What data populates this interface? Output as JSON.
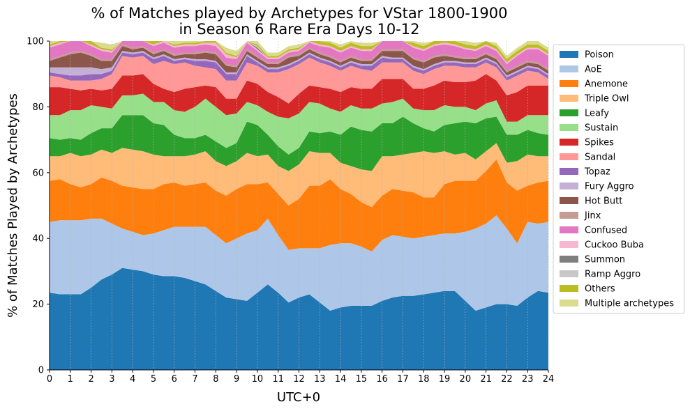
{
  "chart_data": {
    "type": "area",
    "title": "% of Matches played by Archetypes for VStar 1800-1900\nin Season 6 Rare Era Days 10-12",
    "xlabel": "UTC+0",
    "ylabel": "% of Matches Played by Archetypes",
    "xlim": [
      0,
      24
    ],
    "ylim": [
      0,
      100
    ],
    "x_ticks": [
      0,
      1,
      2,
      3,
      4,
      5,
      6,
      7,
      8,
      9,
      10,
      11,
      12,
      13,
      14,
      15,
      16,
      17,
      18,
      19,
      20,
      21,
      22,
      23,
      24
    ],
    "y_ticks": [
      0,
      20,
      40,
      60,
      80,
      100
    ],
    "grid": "vertical dashed",
    "legend_position": "right",
    "stacked": true,
    "x": [
      0,
      0.5,
      1,
      1.5,
      2,
      2.5,
      3,
      3.5,
      4,
      4.5,
      5,
      5.5,
      6,
      6.5,
      7,
      7.5,
      8,
      8.5,
      9,
      9.5,
      10,
      10.5,
      11,
      11.5,
      12,
      12.5,
      13,
      13.5,
      14,
      14.5,
      15,
      15.5,
      16,
      16.5,
      17,
      17.5,
      18,
      18.5,
      19,
      19.5,
      20,
      20.5,
      21,
      21.5,
      22,
      22.5,
      23,
      23.5,
      24
    ],
    "series": [
      {
        "name": "Poison",
        "color": "#1f77b4",
        "values": [
          23.5,
          23,
          23,
          23,
          25,
          27.5,
          29,
          31,
          30.5,
          30,
          29,
          28.5,
          28.5,
          28,
          27,
          26,
          24,
          22,
          21.5,
          21,
          23.5,
          26,
          23.5,
          20.5,
          22,
          23,
          20.5,
          18,
          19,
          19.5,
          19.5,
          19.5,
          21,
          22,
          22.5,
          22.5,
          23,
          23.5,
          24,
          24,
          21,
          18,
          19,
          20,
          20,
          19.5,
          22,
          24,
          23.5
        ]
      },
      {
        "name": "AoE",
        "color": "#aec7e8",
        "values": [
          21.5,
          22.5,
          22.5,
          22.5,
          21,
          18.5,
          15.5,
          12,
          11.5,
          11,
          12.5,
          14,
          15,
          15.5,
          16.5,
          17.5,
          17,
          16.5,
          18.5,
          20.5,
          19,
          20,
          17.5,
          16,
          15,
          14,
          16.5,
          20,
          19.5,
          19,
          18,
          16.5,
          18.5,
          19,
          18,
          17.5,
          17.5,
          17.5,
          17.5,
          17.5,
          21,
          25,
          25.5,
          27,
          23,
          19,
          23,
          20.5,
          21.5
        ]
      },
      {
        "name": "Anemone",
        "color": "#ff7f0e",
        "values": [
          12.5,
          12.5,
          11,
          10,
          10.5,
          12.5,
          13,
          13,
          13.5,
          14,
          13.5,
          14,
          13.5,
          12.5,
          13,
          13.5,
          13.5,
          14.5,
          15,
          15,
          14,
          11,
          12.5,
          13.5,
          15,
          19,
          19,
          20,
          16.5,
          15,
          13.5,
          13.5,
          13.5,
          14,
          14,
          14,
          12,
          11.5,
          15,
          16,
          15.5,
          14.5,
          16,
          17,
          14,
          16,
          11,
          12.5,
          12.5
        ]
      },
      {
        "name": "Triple Owl",
        "color": "#ffbb78",
        "values": [
          7.5,
          7,
          9.5,
          9.5,
          9,
          8.5,
          8.5,
          11.5,
          11.5,
          11.5,
          10.5,
          8.5,
          8,
          9,
          9,
          9.5,
          9,
          9,
          8.5,
          9.5,
          8.5,
          8.5,
          8.5,
          10.5,
          10.5,
          10.5,
          10,
          8,
          8,
          8.5,
          10,
          11,
          12,
          10,
          11,
          12,
          14,
          13.5,
          10,
          8,
          8.5,
          6.5,
          6,
          5,
          6,
          9,
          9.5,
          8,
          7.5
        ]
      },
      {
        "name": "Leafy",
        "color": "#2ca02c",
        "values": [
          5.5,
          5,
          4.5,
          5,
          6.5,
          6.5,
          7.5,
          10,
          10.5,
          11,
          9.5,
          9.5,
          6.5,
          5.5,
          5,
          5,
          6,
          5.5,
          5.5,
          9.5,
          9.5,
          6,
          6,
          5,
          5,
          6,
          6,
          6.5,
          8.5,
          12,
          12,
          12,
          10,
          10,
          11.5,
          9,
          7,
          6.5,
          8,
          9.5,
          9.5,
          11,
          10,
          8,
          8.5,
          8,
          7.5,
          7,
          6.5
        ]
      },
      {
        "name": "Sustain",
        "color": "#98df8a",
        "values": [
          7,
          7.5,
          8.5,
          9,
          8.5,
          6.5,
          6,
          6,
          6,
          6.5,
          6.5,
          7,
          7.5,
          8,
          9.5,
          11,
          10.5,
          10,
          9,
          6,
          6,
          7,
          9,
          11,
          10.5,
          9,
          9,
          7,
          7,
          6.5,
          6.5,
          7,
          6,
          6.5,
          5.5,
          4.5,
          5.5,
          6.5,
          6,
          5,
          4.5,
          4,
          4.5,
          5,
          4,
          4,
          4.5,
          5.5,
          6
        ]
      },
      {
        "name": "Spikes",
        "color": "#d62728",
        "values": [
          8.5,
          8.5,
          6.5,
          6,
          5,
          5,
          6,
          6,
          6,
          6,
          5.5,
          4,
          5.5,
          7,
          6,
          4,
          6,
          5,
          4.5,
          6.5,
          6.5,
          6,
          6,
          4.5,
          6,
          5,
          5,
          6,
          6,
          5.5,
          6,
          6,
          7.5,
          7,
          6,
          6,
          6.5,
          7.5,
          7.5,
          7.5,
          7.5,
          9,
          9,
          6,
          8,
          9,
          9,
          9,
          9
        ]
      },
      {
        "name": "Sandal",
        "color": "#ff9896",
        "values": [
          3.5,
          3,
          2.5,
          3,
          2.5,
          3.5,
          4.5,
          6,
          5.5,
          5.5,
          6,
          8.5,
          8.5,
          8,
          6.5,
          5.5,
          5.5,
          5.5,
          5.5,
          5.5,
          5.5,
          6,
          7.5,
          10.5,
          9,
          8.5,
          7.5,
          7,
          6.5,
          6.5,
          6,
          5.5,
          5,
          5,
          5,
          5.5,
          4.5,
          5,
          4.5,
          5,
          4.5,
          4,
          3.5,
          4,
          4.5,
          5,
          4.5,
          4,
          2
        ]
      },
      {
        "name": "Topaz",
        "color": "#9467bd",
        "values": [
          1,
          1,
          1.5,
          1.5,
          2,
          1.5,
          1,
          1,
          1,
          1,
          1.5,
          1.5,
          1,
          1,
          1.5,
          2,
          2,
          2,
          2,
          2,
          1,
          1,
          1,
          1,
          1,
          1,
          1,
          1,
          1,
          1,
          1,
          1.5,
          1.5,
          1,
          1,
          1,
          1,
          1,
          1,
          1,
          1,
          1,
          1,
          1,
          1,
          1,
          1,
          1,
          1
        ]
      },
      {
        "name": "Fury Aggro",
        "color": "#c5b0d5",
        "values": [
          1.5,
          2,
          2.5,
          2.5,
          2,
          1.5,
          1,
          0.5,
          0.5,
          0.5,
          0.5,
          0.5,
          0.5,
          0.5,
          0.5,
          0.5,
          0.5,
          0.5,
          0.5,
          0.5,
          0.5,
          0.5,
          0.5,
          0.5,
          0.5,
          0.5,
          0.5,
          0.5,
          0.5,
          0.5,
          0.5,
          0.5,
          0.5,
          0.5,
          0.5,
          0.5,
          0.5,
          0.5,
          0.5,
          0.5,
          0.5,
          0.5,
          0.5,
          0.5,
          0.5,
          0.5,
          0.5,
          0.5,
          0.5
        ]
      },
      {
        "name": "Hot Butt",
        "color": "#8c564b",
        "values": [
          2,
          3,
          4,
          4.5,
          3.5,
          2.5,
          2,
          1.5,
          1,
          1,
          1,
          1,
          1,
          1,
          1.5,
          2,
          2,
          2,
          1.5,
          1,
          1,
          1,
          1,
          2,
          1,
          1,
          1,
          1,
          1,
          1,
          1,
          1,
          1.5,
          2,
          2,
          2,
          2,
          2,
          1.5,
          1,
          1,
          1,
          1,
          1,
          1,
          1,
          1,
          1,
          1
        ]
      },
      {
        "name": "Jinx",
        "color": "#c49c94",
        "values": [
          0.5,
          0.5,
          0.5,
          0.5,
          0.5,
          0.5,
          0.5,
          0.5,
          0.5,
          0.5,
          0.5,
          0.5,
          0.5,
          0.5,
          0.5,
          0.5,
          0.5,
          0.5,
          0.5,
          0.5,
          0.5,
          0.5,
          0.5,
          0.5,
          0.5,
          0.5,
          0.5,
          0.5,
          0.5,
          0.5,
          0.5,
          0.5,
          0.5,
          0.5,
          0.5,
          0.5,
          0.5,
          0.5,
          0.5,
          0.5,
          0.5,
          0.5,
          0.5,
          0.5,
          0.5,
          0.5,
          0.5,
          0.5,
          0.5
        ]
      },
      {
        "name": "Confused",
        "color": "#e377c2",
        "values": [
          3.5,
          3.5,
          3.5,
          3,
          2.5,
          2.5,
          2,
          2,
          2,
          2,
          2,
          2,
          2,
          2,
          2,
          2,
          2,
          2,
          2,
          2,
          1.5,
          1,
          1,
          1,
          1,
          1.5,
          2,
          2.5,
          2.5,
          2.5,
          2.5,
          2.5,
          2.5,
          2.5,
          2.5,
          3,
          3,
          3,
          3,
          3,
          2.5,
          2,
          2,
          2,
          2,
          3,
          3.5,
          4,
          4
        ]
      },
      {
        "name": "Cuckoo Buba",
        "color": "#f7b6d2",
        "values": [
          0.5,
          0.5,
          0.5,
          0.5,
          0.5,
          0.5,
          0.5,
          0.5,
          0.5,
          0.5,
          0.5,
          0.5,
          0.5,
          0.5,
          0.5,
          0.5,
          1,
          1,
          0.5,
          0.5,
          0.5,
          0.5,
          0.5,
          0.5,
          0.5,
          0.5,
          0.5,
          0.5,
          0.5,
          0.5,
          0.5,
          0.5,
          0.5,
          0.5,
          0.5,
          0.5,
          0.5,
          0.5,
          0.5,
          0.5,
          0.5,
          0.5,
          0.5,
          0.5,
          0.5,
          0.5,
          0.5,
          0.5,
          0.5
        ]
      },
      {
        "name": "Summon",
        "color": "#7f7f7f",
        "values": [
          0,
          0,
          0,
          0,
          0,
          0,
          0,
          0,
          0,
          0,
          0,
          0,
          0,
          0,
          0,
          0,
          0,
          0,
          0,
          0,
          0.5,
          0,
          0,
          0,
          0,
          0,
          0,
          0,
          0,
          0,
          0,
          0,
          0,
          0,
          0,
          0,
          0,
          0,
          0,
          0,
          0,
          0,
          0,
          0,
          0,
          0,
          0,
          0,
          0
        ]
      },
      {
        "name": "Ramp Aggro",
        "color": "#c7c7c7",
        "values": [
          0,
          0,
          0,
          0,
          0,
          0,
          0,
          0,
          0,
          0,
          0,
          0,
          0,
          0,
          0,
          0,
          0,
          0,
          0,
          0,
          0.5,
          0,
          0,
          0,
          0,
          0,
          0,
          0,
          0,
          0,
          0,
          0,
          0,
          0,
          0,
          0,
          0,
          0,
          0,
          0,
          0,
          0,
          0,
          0,
          0,
          0,
          0,
          0,
          0
        ]
      },
      {
        "name": "Others",
        "color": "#bcbd22",
        "values": [
          0.5,
          0.5,
          1,
          1,
          1,
          0.5,
          0.5,
          0.5,
          0.5,
          1,
          1,
          1,
          0.5,
          0.5,
          0.5,
          0.5,
          0.5,
          0.5,
          0.5,
          0.5,
          0.5,
          0.5,
          0.5,
          0.5,
          0.5,
          0.5,
          1,
          1,
          1,
          1,
          1,
          1,
          1,
          1,
          1,
          1,
          1,
          1,
          1,
          1,
          1,
          1,
          1,
          1,
          1,
          1,
          1,
          1,
          1
        ]
      },
      {
        "name": "Multiple archetypes",
        "color": "#dbdb8d",
        "values": [
          1.5,
          1.5,
          1.5,
          1.5,
          1.5,
          1.5,
          1.5,
          1.5,
          1.5,
          1.5,
          1.5,
          1.5,
          1.5,
          1.5,
          1.5,
          1.5,
          1.5,
          1.5,
          1.5,
          1.5,
          1,
          1,
          1,
          1,
          1,
          1,
          1,
          1,
          1,
          1,
          1,
          1,
          1,
          1,
          1,
          1,
          1,
          1,
          1,
          1,
          1,
          1,
          1,
          1,
          1,
          1,
          1,
          1,
          1
        ]
      }
    ]
  }
}
